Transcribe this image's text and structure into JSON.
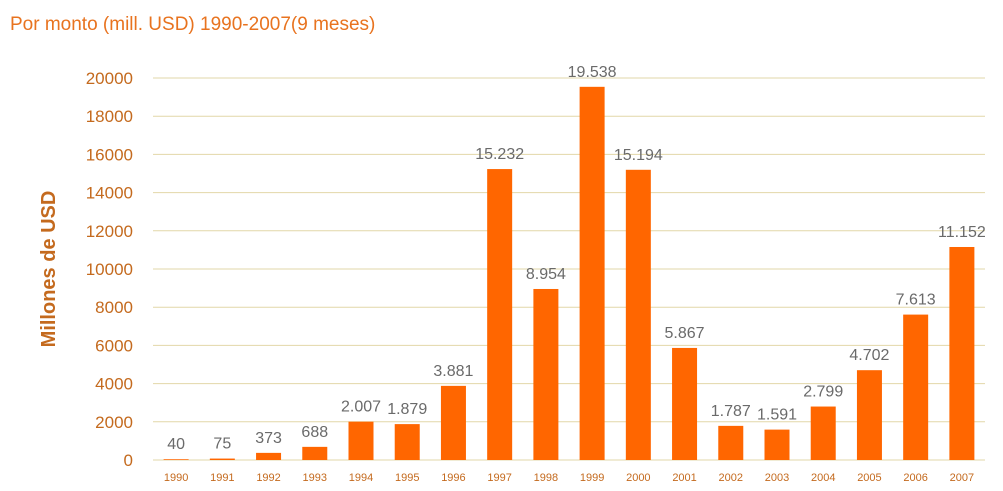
{
  "chart_data": {
    "type": "bar",
    "title": "Por monto (mill. USD) 1990-2007(9 meses)",
    "xlabel": "",
    "ylabel": "Millones de USD",
    "ylim": [
      0,
      20000
    ],
    "yticks": [
      "0",
      "2000",
      "4000",
      "6000",
      "8000",
      "10000",
      "12000",
      "14000",
      "16000",
      "18000",
      "20000"
    ],
    "grid": true,
    "categories": [
      "1990",
      "1991",
      "1992",
      "1993",
      "1994",
      "1995",
      "1996",
      "1997",
      "1998",
      "1999",
      "2000",
      "2001",
      "2002",
      "2003",
      "2004",
      "2005",
      "2006",
      "2007"
    ],
    "values": [
      40,
      75,
      373,
      688,
      2007,
      1879,
      3881,
      15232,
      8954,
      19538,
      15194,
      5867,
      1787,
      1591,
      2799,
      4702,
      7613,
      11152
    ],
    "data_labels": [
      "40",
      "75",
      "373",
      "688",
      "2.007",
      "1.879",
      "3.881",
      "15.232",
      "8.954",
      "19.538",
      "15.194",
      "5.867",
      "1.787",
      "1.591",
      "2.799",
      "4.702",
      "7.613",
      "11.152"
    ],
    "colors": {
      "bar": "#ff6600",
      "text": "#e8731f",
      "axis_text": "#c46a1e",
      "grid": "#e2d7a8",
      "label": "#6a6a6a"
    }
  }
}
